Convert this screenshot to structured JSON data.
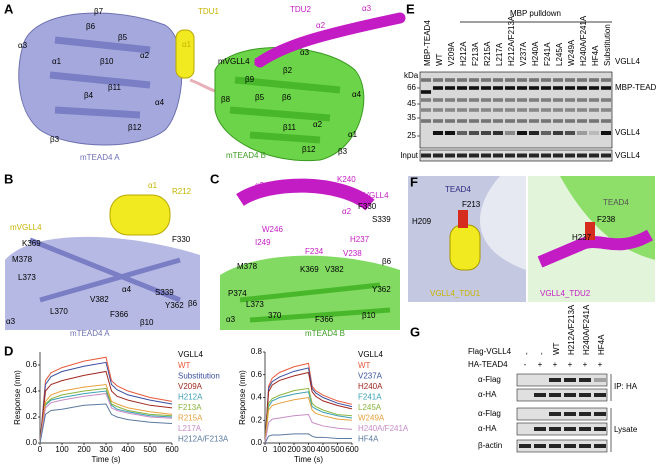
{
  "panels": {
    "A": {
      "letter": "A",
      "labels": [
        "α3",
        "β7",
        "β6",
        "β5",
        "α1",
        "β10",
        "α2",
        "β4",
        "β11",
        "α4",
        "β12",
        "β3",
        "mTEAD4 A",
        "TDU1",
        "α1",
        "mVGLL4",
        "TDU2",
        "α2",
        "α3",
        "β1",
        "α3",
        "β2",
        "β9",
        "β8",
        "β5",
        "β6",
        "β11",
        "α2",
        "α1",
        "α4",
        "β12",
        "β3",
        "mTEAD4 B"
      ]
    },
    "B": {
      "letter": "B",
      "labels": [
        "mVGLL4",
        "α1",
        "R212",
        "K369",
        "F330",
        "M378",
        "L373",
        "V382",
        "S339",
        "Y362",
        "α4",
        "L370",
        "F366",
        "β6",
        "α3",
        "β10",
        "mTEAD4 A"
      ]
    },
    "C": {
      "letter": "C",
      "labels": [
        "α3",
        "L242",
        "K240",
        "mVGLL4",
        "I249",
        "W246",
        "α2",
        "F330",
        "H237",
        "S339",
        "β6",
        "M378",
        "K369",
        "V382",
        "V238",
        "Y362",
        "P374",
        "L373",
        "F234",
        "370",
        "F366",
        "α3",
        "β10",
        "mTEAD4 B"
      ]
    },
    "D": {
      "letter": "D"
    },
    "E": {
      "letter": "E",
      "header": "MBP pulldown",
      "kda_title": "kDa",
      "markers": [
        "66",
        "45",
        "35",
        "25"
      ],
      "lanes": [
        "MBP-TEAD4",
        "WT",
        "V209A",
        "H212A",
        "F213A",
        "R215A",
        "L217A",
        "H212A/F213A",
        "V237A",
        "H240A",
        "F241A",
        "L245A",
        "W249A",
        "H240A/F241A",
        "HF4A",
        "Substitution"
      ],
      "right_labels": [
        "VGLL4",
        "MBP-TEAD4",
        "VGLL4",
        "VGLL4"
      ],
      "input": "Input"
    },
    "F": {
      "letter": "F",
      "labels": [
        "TEAD4",
        "F213",
        "H209",
        "TEAD4",
        "F238",
        "H237",
        "VGLL4_TDU1",
        "VGLL4_TDU2"
      ]
    },
    "G": {
      "letter": "G",
      "rows": [
        {
          "name": "Flag-VGLL4",
          "lanes": [
            "-",
            "-",
            "WT",
            "H212A/F213A",
            "H240A/F241A",
            "HF4A"
          ]
        },
        {
          "name": "HA-TEAD4",
          "lanes": [
            "-",
            "+",
            "+",
            "+",
            "+",
            "+"
          ]
        }
      ],
      "blots": [
        "α-Flag",
        "α-HA",
        "α-Flag",
        "α-HA",
        "β-actin"
      ],
      "groups": [
        "IP: HA",
        "Lysate"
      ]
    }
  },
  "chart_data": [
    {
      "type": "line",
      "xlabel": "Time (s)",
      "ylabel": "Response (nm)",
      "legend_title": "VGLL4",
      "x": [
        0,
        25,
        50,
        100,
        200,
        300,
        325,
        350,
        400,
        500,
        600
      ],
      "xlim": [
        0,
        600
      ],
      "xticks": [
        0,
        100,
        200,
        300,
        400,
        500,
        600
      ],
      "ylim": [
        0,
        0.7
      ],
      "yticks": [
        {
          "value": 0,
          "label": "0.0"
        },
        {
          "value": 0.2,
          "label": "0.2"
        },
        {
          "value": 0.4,
          "label": "0.4"
        },
        {
          "value": 0.6,
          "label": "0.6"
        }
      ],
      "series": [
        {
          "name": "WT",
          "color": "#e8593a",
          "values": [
            0,
            0.48,
            0.54,
            0.58,
            0.63,
            0.66,
            0.48,
            0.44,
            0.4,
            0.35,
            0.32
          ]
        },
        {
          "name": "Substitution",
          "color": "#3a4fa0",
          "values": [
            0,
            0.45,
            0.51,
            0.55,
            0.59,
            0.62,
            0.45,
            0.41,
            0.37,
            0.33,
            0.3
          ]
        },
        {
          "name": "V209A",
          "color": "#a0281e",
          "values": [
            0,
            0.4,
            0.45,
            0.48,
            0.52,
            0.55,
            0.4,
            0.36,
            0.33,
            0.29,
            0.27
          ]
        },
        {
          "name": "H212A",
          "color": "#3aa0b4",
          "values": [
            0,
            0.29,
            0.33,
            0.35,
            0.38,
            0.4,
            0.29,
            0.26,
            0.24,
            0.21,
            0.2
          ]
        },
        {
          "name": "F213A",
          "color": "#8ab43c",
          "values": [
            0,
            0.3,
            0.34,
            0.37,
            0.4,
            0.42,
            0.3,
            0.28,
            0.25,
            0.22,
            0.21
          ]
        },
        {
          "name": "R215A",
          "color": "#e8a03c",
          "values": [
            0,
            0.32,
            0.37,
            0.4,
            0.43,
            0.45,
            0.32,
            0.3,
            0.27,
            0.24,
            0.22
          ]
        },
        {
          "name": "L217A",
          "color": "#c88cc8",
          "values": [
            0,
            0.27,
            0.31,
            0.33,
            0.36,
            0.38,
            0.27,
            0.25,
            0.23,
            0.2,
            0.19
          ]
        },
        {
          "name": "H212A/F213A",
          "color": "#5a7aa0",
          "values": [
            0,
            0.22,
            0.25,
            0.26,
            0.29,
            0.3,
            0.22,
            0.2,
            0.18,
            0.16,
            0.15
          ]
        }
      ]
    },
    {
      "type": "line",
      "xlabel": "Time (s)",
      "ylabel": "Response (nm)",
      "legend_title": "VGLL4",
      "x": [
        0,
        25,
        50,
        100,
        200,
        300,
        325,
        350,
        400,
        500,
        600
      ],
      "xlim": [
        0,
        600
      ],
      "xticks": [
        0,
        100,
        200,
        300,
        400,
        500,
        600
      ],
      "ylim": [
        0,
        0.8
      ],
      "yticks": [
        {
          "value": 0,
          "label": "0.0"
        },
        {
          "value": 0.2,
          "label": "0.2"
        },
        {
          "value": 0.4,
          "label": "0.4"
        },
        {
          "value": 0.6,
          "label": "0.6"
        },
        {
          "value": 0.8,
          "label": "0.8"
        }
      ],
      "series": [
        {
          "name": "WT",
          "color": "#e8593a",
          "values": [
            0,
            0.5,
            0.57,
            0.62,
            0.67,
            0.7,
            0.5,
            0.46,
            0.42,
            0.37,
            0.34
          ]
        },
        {
          "name": "V237A",
          "color": "#3a4fa0",
          "values": [
            0,
            0.48,
            0.54,
            0.58,
            0.63,
            0.66,
            0.48,
            0.44,
            0.4,
            0.35,
            0.32
          ]
        },
        {
          "name": "H240A",
          "color": "#a0281e",
          "values": [
            0,
            0.45,
            0.51,
            0.55,
            0.59,
            0.62,
            0.45,
            0.41,
            0.37,
            0.33,
            0.3
          ]
        },
        {
          "name": "F241A",
          "color": "#3aa0b4",
          "values": [
            0,
            0.32,
            0.37,
            0.4,
            0.43,
            0.45,
            0.32,
            0.3,
            0.27,
            0.24,
            0.22
          ]
        },
        {
          "name": "L245A",
          "color": "#8ab43c",
          "values": [
            0,
            0.35,
            0.39,
            0.42,
            0.46,
            0.48,
            0.35,
            0.32,
            0.29,
            0.25,
            0.24
          ]
        },
        {
          "name": "W249A",
          "color": "#e8a03c",
          "values": [
            0,
            0.29,
            0.33,
            0.35,
            0.38,
            0.4,
            0.29,
            0.26,
            0.24,
            0.21,
            0.2
          ]
        },
        {
          "name": "H240A/F241A",
          "color": "#c88cc8",
          "values": [
            0,
            0.18,
            0.21,
            0.22,
            0.24,
            0.25,
            0.18,
            0.17,
            0.15,
            0.13,
            0.12
          ]
        },
        {
          "name": "HF4A",
          "color": "#5a7aa0",
          "values": [
            0,
            0.06,
            0.07,
            0.07,
            0.08,
            0.08,
            0.06,
            0.05,
            0.05,
            0.04,
            0.04
          ]
        }
      ]
    }
  ]
}
